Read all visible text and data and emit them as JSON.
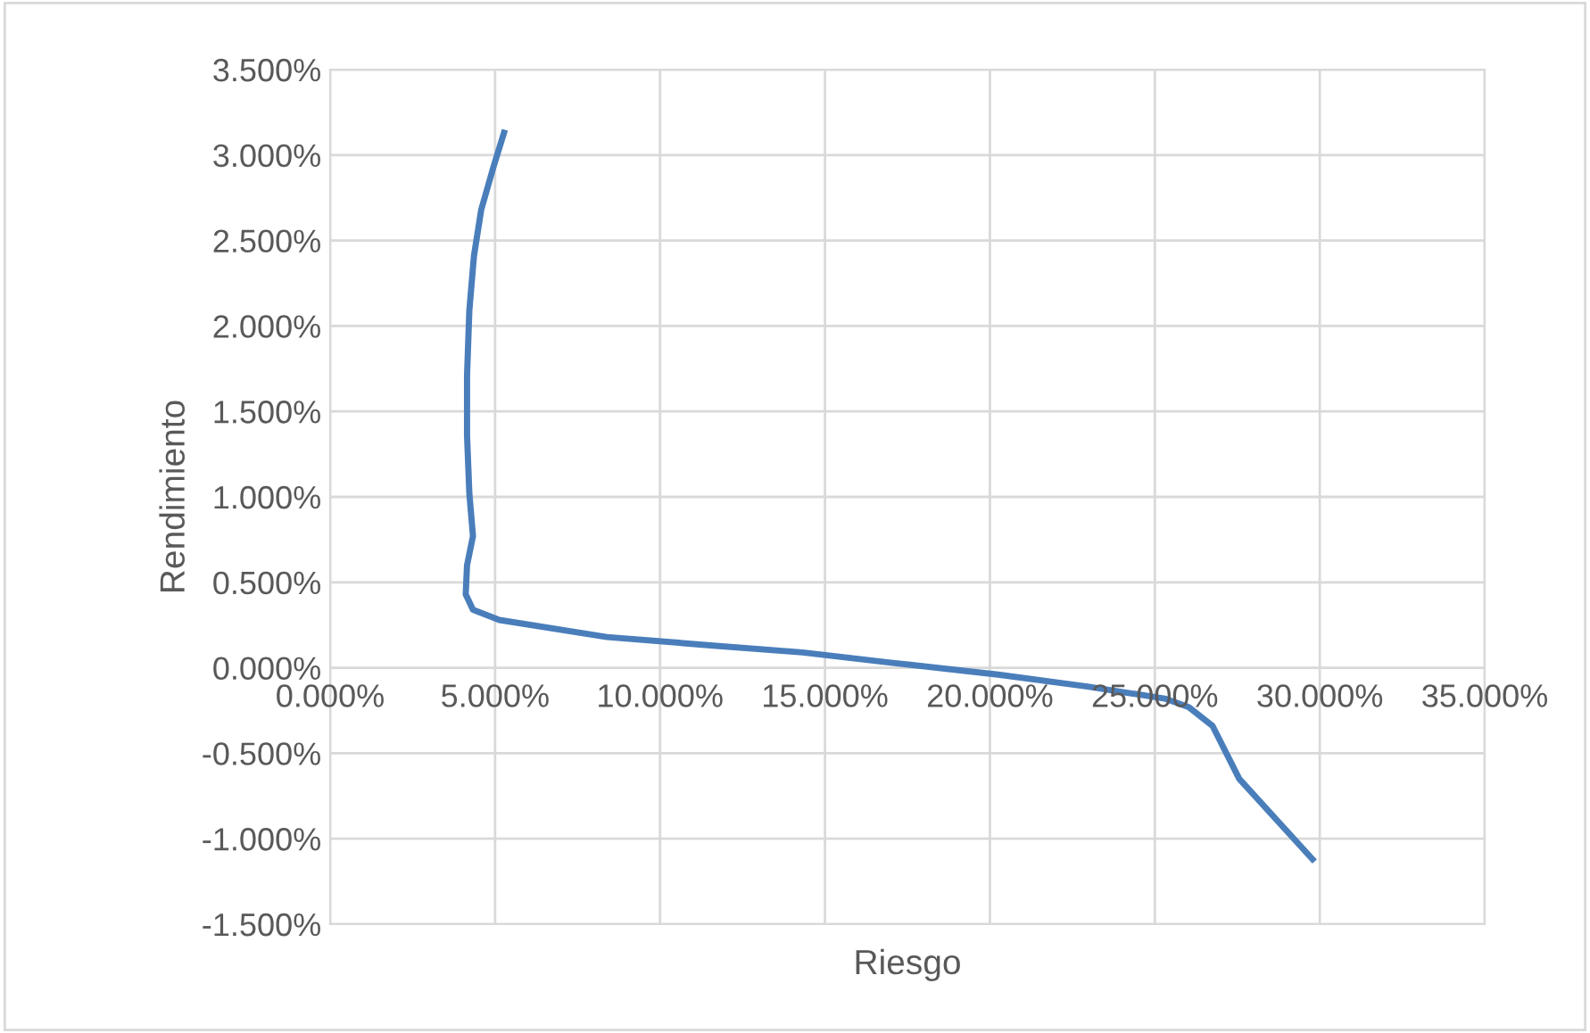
{
  "chart_data": {
    "type": "line",
    "xlabel": "Riesgo",
    "ylabel": "Rendimiento",
    "xlim": [
      0,
      35
    ],
    "ylim": [
      -1.5,
      3.5
    ],
    "xticks": [
      {
        "value": 0,
        "label": "0.000%"
      },
      {
        "value": 5,
        "label": "5.000%"
      },
      {
        "value": 10,
        "label": "10.000%"
      },
      {
        "value": 15,
        "label": "15.000%"
      },
      {
        "value": 20,
        "label": "20.000%"
      },
      {
        "value": 25,
        "label": "25.000%"
      },
      {
        "value": 30,
        "label": "30.000%"
      },
      {
        "value": 35,
        "label": "35.000%"
      }
    ],
    "yticks": [
      {
        "value": -1.5,
        "label": "-1.500%"
      },
      {
        "value": -1.0,
        "label": "-1.000%"
      },
      {
        "value": -0.5,
        "label": "-0.500%"
      },
      {
        "value": 0,
        "label": "0.000%"
      },
      {
        "value": 0.5,
        "label": "0.500%"
      },
      {
        "value": 1.0,
        "label": "1.000%"
      },
      {
        "value": 1.5,
        "label": "1.500%"
      },
      {
        "value": 2.0,
        "label": "2.000%"
      },
      {
        "value": 2.5,
        "label": "2.500%"
      },
      {
        "value": 3.0,
        "label": "3.000%"
      },
      {
        "value": 3.5,
        "label": "3.500%"
      }
    ],
    "grid": true,
    "marker": "none",
    "line_style": "solid",
    "series": [
      {
        "color": "#4a7ebb",
        "x": [
          5.27,
          4.95,
          4.58,
          4.36,
          4.22,
          4.15,
          4.15,
          4.22,
          4.33,
          4.15,
          4.11,
          4.33,
          5.13,
          8.39,
          11.62,
          14.32,
          17.0,
          20.25,
          22.96,
          25.3,
          26.03,
          26.75,
          27.56,
          29.78
        ],
        "values": [
          3.13,
          2.93,
          2.68,
          2.41,
          2.09,
          1.71,
          1.36,
          1.02,
          0.77,
          0.6,
          0.43,
          0.34,
          0.28,
          0.18,
          0.13,
          0.09,
          0.03,
          -0.04,
          -0.11,
          -0.18,
          -0.23,
          -0.34,
          -0.65,
          -1.12
        ]
      }
    ]
  }
}
